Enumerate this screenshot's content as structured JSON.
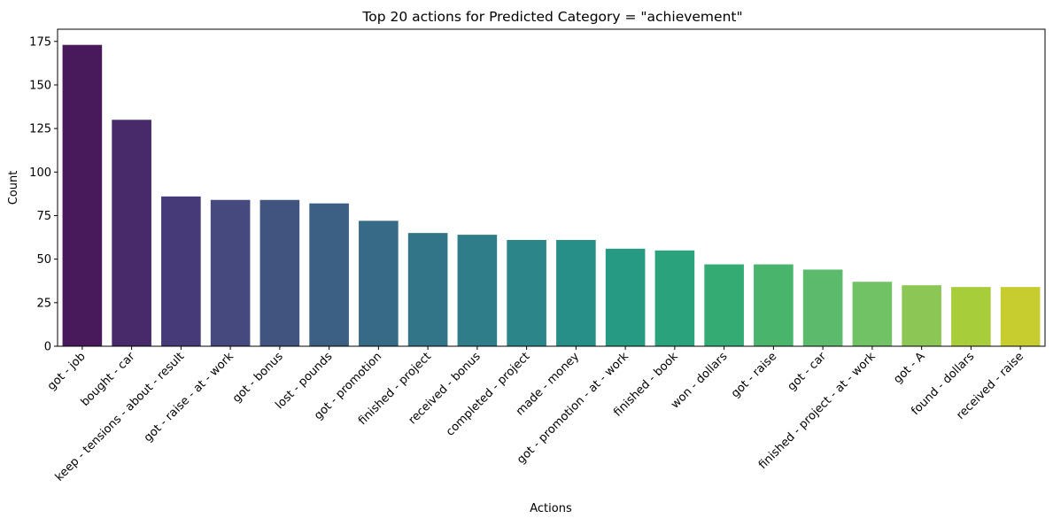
{
  "chart_data": {
    "type": "bar",
    "title": "Top 20 actions for Predicted Category = \"achievement\"",
    "xlabel": "Actions",
    "ylabel": "Count",
    "ylim": [
      0,
      182
    ],
    "yticks": [
      0,
      25,
      50,
      75,
      100,
      125,
      150,
      175
    ],
    "grid": false,
    "colormap": "viridis",
    "categories": [
      "got - job",
      "bought - car",
      "keep - tensions - about - result",
      "got - raise - at - work",
      "got - bonus",
      "lost - pounds",
      "got - promotion",
      "finished - project",
      "received - bonus",
      "completed - project",
      "made - money",
      "got - promotion - at - work",
      "finished - book",
      "won - dollars",
      "got - raise",
      "got - car",
      "finished - project - at - work",
      "got - A",
      "found - dollars",
      "received - raise"
    ],
    "values": [
      173,
      130,
      86,
      84,
      84,
      82,
      72,
      65,
      64,
      61,
      61,
      56,
      55,
      47,
      47,
      44,
      37,
      35,
      34,
      34
    ],
    "colors": [
      "#481a5b",
      "#482a6b",
      "#473a78",
      "#45497e",
      "#415480",
      "#3c5f84",
      "#376a86",
      "#327588",
      "#2e7d89",
      "#2b8589",
      "#288f88",
      "#269a82",
      "#2aa37d",
      "#35ab74",
      "#48b46c",
      "#5cba6c",
      "#71c264",
      "#8cc654",
      "#a8cd3a",
      "#c7cd2e"
    ]
  }
}
